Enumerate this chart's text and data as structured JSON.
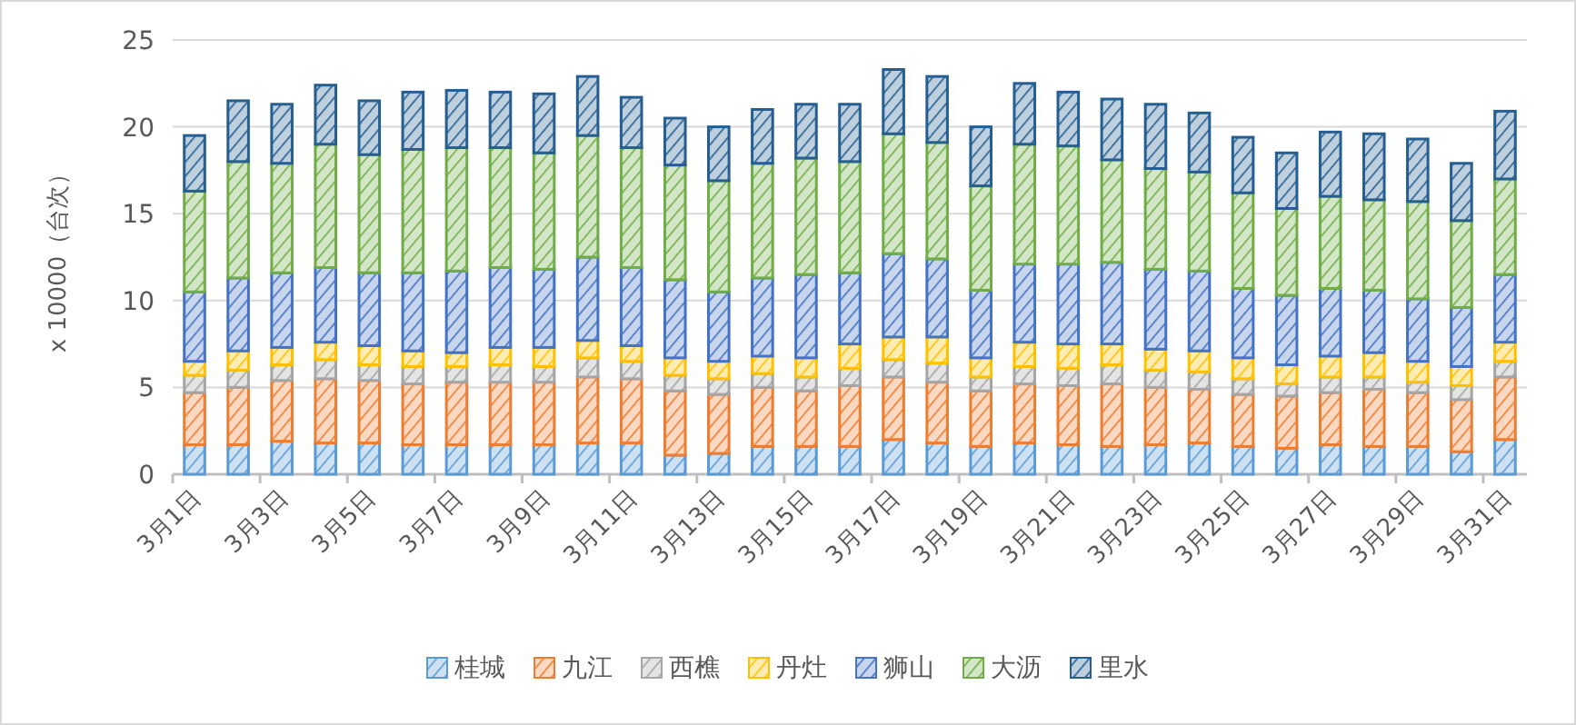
{
  "chart_data": {
    "type": "bar",
    "stacked": true,
    "ylabel": "x 10000（台次）",
    "categories": [
      "3月1日",
      null,
      "3月3日",
      null,
      "3月5日",
      null,
      "3月7日",
      null,
      "3月9日",
      null,
      "3月11日",
      null,
      "3月13日",
      null,
      "3月15日",
      null,
      "3月17日",
      null,
      "3月19日",
      null,
      "3月21日",
      null,
      "3月23日",
      null,
      "3月25日",
      null,
      "3月27日",
      null,
      "3月29日",
      null,
      "3月31日"
    ],
    "series": [
      {
        "name": "桂城",
        "color": "#5b9bd5",
        "values": [
          1.7,
          1.7,
          1.9,
          1.8,
          1.8,
          1.7,
          1.7,
          1.7,
          1.7,
          1.8,
          1.8,
          1.1,
          1.2,
          1.6,
          1.6,
          1.6,
          2.0,
          1.8,
          1.6,
          1.8,
          1.7,
          1.6,
          1.7,
          1.8,
          1.6,
          1.5,
          1.7,
          1.6,
          1.6,
          1.3,
          2.0
        ]
      },
      {
        "name": "九江",
        "color": "#ed7d31",
        "values": [
          3.0,
          3.3,
          3.5,
          3.7,
          3.6,
          3.5,
          3.6,
          3.6,
          3.6,
          3.8,
          3.7,
          3.7,
          3.4,
          3.4,
          3.2,
          3.5,
          3.6,
          3.5,
          3.2,
          3.4,
          3.4,
          3.6,
          3.3,
          3.1,
          3.0,
          3.0,
          3.0,
          3.3,
          3.1,
          3.0,
          3.6
        ]
      },
      {
        "name": "西樵",
        "color": "#a5a5a5",
        "values": [
          1.0,
          1.0,
          0.9,
          1.1,
          0.9,
          1.0,
          0.9,
          1.0,
          0.9,
          1.1,
          1.0,
          0.9,
          0.9,
          0.8,
          0.8,
          1.0,
          1.0,
          1.1,
          0.8,
          1.0,
          1.0,
          1.1,
          1.0,
          1.0,
          0.9,
          0.7,
          0.9,
          0.7,
          0.6,
          0.8,
          0.9
        ]
      },
      {
        "name": "丹灶",
        "color": "#ffc000",
        "values": [
          0.8,
          1.1,
          1.0,
          1.0,
          1.1,
          0.9,
          0.8,
          1.0,
          1.1,
          1.0,
          0.9,
          1.0,
          1.0,
          1.0,
          1.1,
          1.4,
          1.3,
          1.5,
          1.1,
          1.4,
          1.4,
          1.2,
          1.2,
          1.2,
          1.2,
          1.1,
          1.2,
          1.4,
          1.2,
          1.1,
          1.1
        ]
      },
      {
        "name": "狮山",
        "color": "#4472c4",
        "values": [
          4.0,
          4.2,
          4.3,
          4.3,
          4.2,
          4.5,
          4.7,
          4.6,
          4.5,
          4.8,
          4.5,
          4.5,
          4.0,
          4.5,
          4.8,
          4.1,
          4.8,
          4.5,
          3.9,
          4.5,
          4.6,
          4.7,
          4.6,
          4.6,
          4.0,
          4.0,
          3.9,
          3.6,
          3.6,
          3.4,
          3.9
        ]
      },
      {
        "name": "大沥",
        "color": "#70ad47",
        "values": [
          5.8,
          6.7,
          6.3,
          7.1,
          6.8,
          7.1,
          7.1,
          6.9,
          6.7,
          7.0,
          6.9,
          6.6,
          6.4,
          6.6,
          6.7,
          6.4,
          6.9,
          6.7,
          6.0,
          6.9,
          6.8,
          5.9,
          5.8,
          5.7,
          5.5,
          5.0,
          5.3,
          5.2,
          5.6,
          5.0,
          5.5
        ]
      },
      {
        "name": "里水",
        "color": "#255e91",
        "values": [
          3.2,
          3.5,
          3.4,
          3.4,
          3.1,
          3.3,
          3.3,
          3.2,
          3.4,
          3.4,
          2.9,
          2.7,
          3.1,
          3.1,
          3.1,
          3.3,
          3.7,
          3.8,
          3.4,
          3.5,
          3.1,
          3.5,
          3.7,
          3.4,
          3.2,
          3.2,
          3.7,
          3.8,
          3.6,
          3.3,
          3.9
        ]
      }
    ],
    "ylim": [
      0,
      25
    ],
    "yticks": [
      0,
      5,
      10,
      15,
      20,
      25
    ],
    "grid": "y",
    "legend": "bottom"
  }
}
